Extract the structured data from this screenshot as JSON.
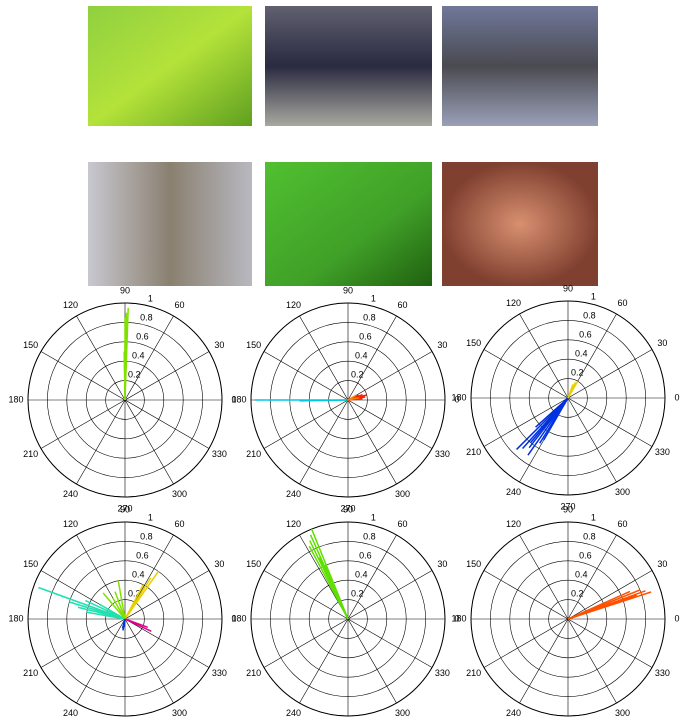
{
  "chart_data": [
    {
      "type": "polar",
      "rlim": [
        0,
        1
      ],
      "rticks": [
        0.2,
        0.4,
        0.6,
        0.8,
        1
      ],
      "thetaticks": [
        0,
        30,
        60,
        90,
        120,
        150,
        180,
        210,
        240,
        270,
        300,
        330
      ],
      "series": [
        {
          "color": "#80e000",
          "theta": [
            88,
            89,
            90,
            90,
            91,
            89
          ],
          "values": [
            0.95,
            0.9,
            0.85,
            0.6,
            0.5,
            0.35
          ]
        }
      ]
    },
    {
      "type": "polar",
      "rlim": [
        0,
        1
      ],
      "rticks": [
        0.2,
        0.4,
        0.6,
        0.8,
        1
      ],
      "thetaticks": [
        0,
        30,
        60,
        90,
        120,
        150,
        180,
        210,
        240,
        270,
        300,
        330
      ],
      "series": [
        {
          "color": "#00c8e0",
          "theta": [
            180,
            181
          ],
          "values": [
            0.96,
            0.5
          ]
        },
        {
          "color": "#ff2000",
          "theta": [
            10,
            15,
            20,
            25,
            5
          ],
          "values": [
            0.18,
            0.2,
            0.16,
            0.12,
            0.15
          ]
        },
        {
          "color": "#ff8000",
          "theta": [
            30,
            12
          ],
          "values": [
            0.1,
            0.12
          ]
        }
      ]
    },
    {
      "type": "polar",
      "rlim": [
        0,
        1
      ],
      "rticks": [
        0.2,
        0.4,
        0.6,
        0.8,
        1
      ],
      "thetaticks": [
        0,
        30,
        60,
        90,
        120,
        150,
        180,
        210,
        240,
        270,
        300,
        330
      ],
      "series": [
        {
          "color": "#0030e0",
          "theta": [
            225,
            228,
            232,
            235,
            238,
            240,
            222,
            230
          ],
          "values": [
            0.75,
            0.7,
            0.65,
            0.72,
            0.55,
            0.5,
            0.45,
            0.6
          ]
        },
        {
          "color": "#e8d000",
          "theta": [
            60,
            65,
            70
          ],
          "values": [
            0.2,
            0.18,
            0.15
          ]
        }
      ]
    },
    {
      "type": "polar",
      "rlim": [
        0,
        1
      ],
      "rticks": [
        0.2,
        0.4,
        0.6,
        0.8,
        1
      ],
      "thetaticks": [
        0,
        30,
        60,
        90,
        120,
        150,
        180,
        210,
        240,
        270,
        300,
        330
      ],
      "series": [
        {
          "color": "#20e0b0",
          "theta": [
            160,
            163,
            166,
            170,
            155,
            150
          ],
          "values": [
            0.95,
            0.6,
            0.5,
            0.4,
            0.45,
            0.3
          ]
        },
        {
          "color": "#e8d000",
          "theta": [
            55,
            58,
            62
          ],
          "values": [
            0.6,
            0.5,
            0.4
          ]
        },
        {
          "color": "#80e000",
          "theta": [
            100,
            110,
            120,
            130
          ],
          "values": [
            0.4,
            0.3,
            0.25,
            0.35
          ]
        },
        {
          "color": "#0030e0",
          "theta": [
            255,
            260,
            265
          ],
          "values": [
            0.1,
            0.12,
            0.08
          ]
        },
        {
          "color": "#e00090",
          "theta": [
            335,
            340
          ],
          "values": [
            0.3,
            0.25
          ]
        }
      ]
    },
    {
      "type": "polar",
      "rlim": [
        0,
        1
      ],
      "rticks": [
        0.2,
        0.4,
        0.6,
        0.8,
        1
      ],
      "thetaticks": [
        0,
        30,
        60,
        90,
        120,
        150,
        180,
        210,
        240,
        270,
        300,
        330
      ],
      "series": [
        {
          "color": "#60e000",
          "theta": [
            112,
            114,
            116,
            118,
            115,
            113
          ],
          "values": [
            1,
            0.95,
            0.9,
            0.85,
            0.7,
            0.6
          ]
        }
      ]
    },
    {
      "type": "polar",
      "rlim": [
        0,
        1
      ],
      "rticks": [
        0.2,
        0.4,
        0.6,
        0.8,
        1
      ],
      "thetaticks": [
        0,
        30,
        60,
        90,
        120,
        150,
        180,
        210,
        240,
        270,
        300,
        330
      ],
      "series": [
        {
          "color": "#ff5000",
          "theta": [
            18,
            20,
            22,
            24,
            19
          ],
          "values": [
            0.9,
            0.85,
            0.8,
            0.7,
            0.75
          ]
        }
      ]
    }
  ]
}
